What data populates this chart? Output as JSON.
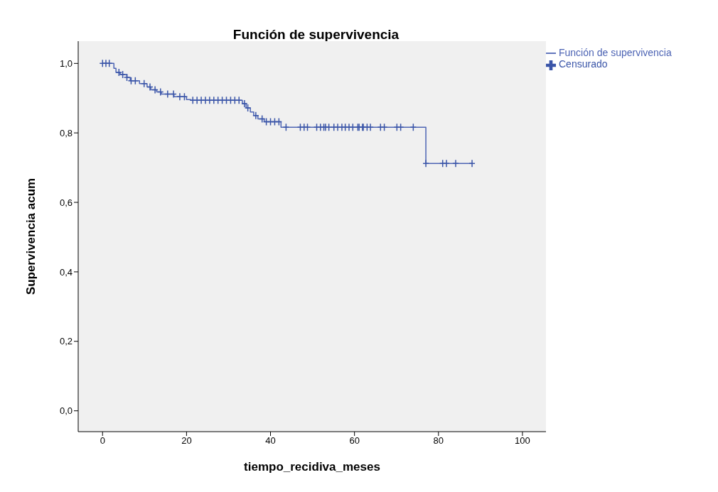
{
  "chart_data": {
    "type": "step",
    "title": "Función de supervivencia",
    "xlabel": "tiempo_recidiva_meses",
    "ylabel": "Supervivencia acum",
    "xlim": [
      -5.8,
      105.6
    ],
    "xticks": [
      0,
      20,
      40,
      60,
      80,
      100
    ],
    "ylim": [
      -0.06,
      1.064
    ],
    "yticks": [
      {
        "value": 0,
        "label": "0,0"
      },
      {
        "value": 0.2,
        "label": "0,2"
      },
      {
        "value": 0.4,
        "label": "0,4"
      },
      {
        "value": 0.6,
        "label": "0,6"
      },
      {
        "value": 0.8,
        "label": "0,8"
      },
      {
        "value": 1,
        "label": "1,0"
      }
    ],
    "grid": false,
    "legend": "top right",
    "series": [
      {
        "name": "Función de supervivencia",
        "color": "#4d64b4",
        "marker": "none",
        "x": [
          0,
          2.7,
          3.2,
          4.2,
          5.8,
          6.6,
          8.8,
          10.6,
          11.5,
          12.9,
          14,
          17,
          20,
          21,
          33.3,
          34.2,
          35.2,
          36,
          37,
          38.5,
          42.5,
          77,
          88
        ],
        "values": [
          1,
          0.986,
          0.974,
          0.968,
          0.96,
          0.95,
          0.942,
          0.932,
          0.924,
          0.918,
          0.912,
          0.904,
          0.896,
          0.894,
          0.884,
          0.872,
          0.86,
          0.85,
          0.84,
          0.832,
          0.816,
          0.712,
          0.712
        ]
      },
      {
        "name": "Censurado",
        "type": "scatter",
        "color": "#3a55a8",
        "marker": "cross",
        "x": [
          0,
          0.8,
          1.6,
          3.9,
          4.8,
          5.8,
          6.8,
          7.8,
          9.9,
          11.3,
          12.5,
          13.8,
          15.5,
          16.9,
          18.4,
          19.5,
          21.5,
          22.5,
          23.5,
          24.5,
          25.5,
          26.5,
          27.5,
          28.5,
          29.5,
          30.5,
          31.5,
          32.5,
          33.8,
          34.6,
          36.5,
          38,
          39,
          40,
          41,
          42,
          43.7,
          47.1,
          48,
          48.8,
          51,
          51.9,
          52.7,
          53.1,
          53.9,
          55.1,
          56,
          57,
          57.8,
          58.7,
          59.6,
          60.8,
          61.1,
          61.9,
          62.1,
          63,
          63.8,
          66.2,
          67.1,
          70.1,
          71,
          74,
          77,
          81,
          81.9,
          84.1,
          88
        ],
        "values": [
          1,
          1,
          1,
          0.974,
          0.968,
          0.96,
          0.95,
          0.95,
          0.942,
          0.932,
          0.924,
          0.918,
          0.912,
          0.912,
          0.904,
          0.904,
          0.894,
          0.894,
          0.894,
          0.894,
          0.894,
          0.894,
          0.894,
          0.894,
          0.894,
          0.894,
          0.894,
          0.894,
          0.884,
          0.872,
          0.85,
          0.84,
          0.832,
          0.832,
          0.832,
          0.832,
          0.816,
          0.816,
          0.816,
          0.816,
          0.816,
          0.816,
          0.816,
          0.816,
          0.816,
          0.816,
          0.816,
          0.816,
          0.816,
          0.816,
          0.816,
          0.816,
          0.816,
          0.816,
          0.816,
          0.816,
          0.816,
          0.816,
          0.816,
          0.816,
          0.816,
          0.816,
          0.712,
          0.712,
          0.712,
          0.712,
          0.712
        ]
      }
    ]
  }
}
